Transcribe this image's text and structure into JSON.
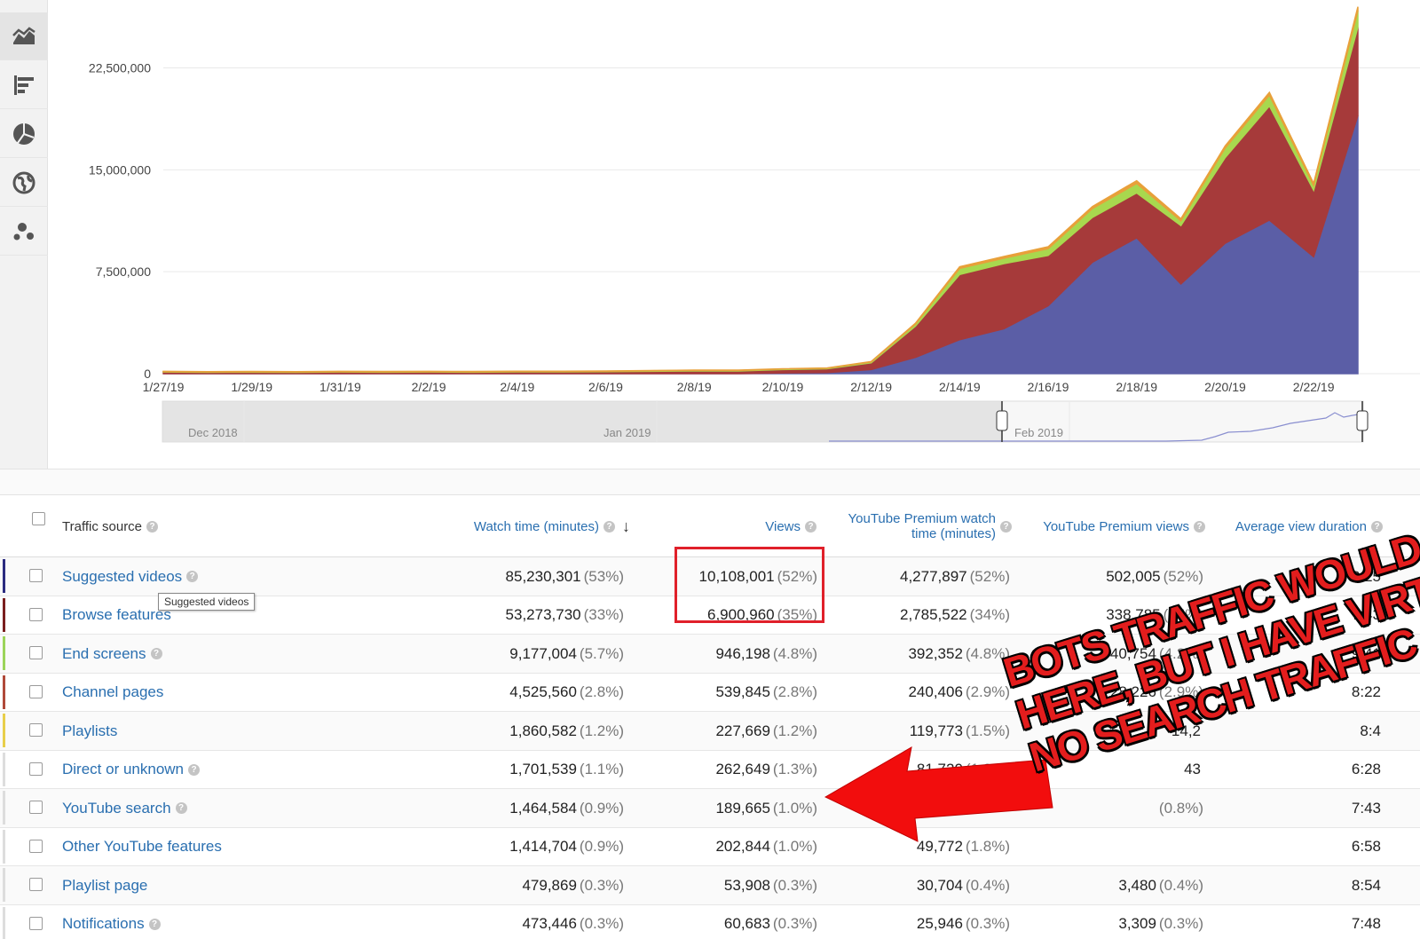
{
  "rail": {
    "buttons": [
      {
        "icon": "area-chart-icon",
        "active": true
      },
      {
        "icon": "bar-chart-icon",
        "active": false
      },
      {
        "icon": "pie-chart-icon",
        "active": false
      },
      {
        "icon": "globe-icon",
        "active": false
      },
      {
        "icon": "bubble-chart-icon",
        "active": false
      }
    ]
  },
  "chart_data": {
    "type": "area",
    "stacked": true,
    "x": [
      "1/27/19",
      "1/28/19",
      "1/29/19",
      "1/30/19",
      "1/31/19",
      "2/1/19",
      "2/2/19",
      "2/3/19",
      "2/4/19",
      "2/5/19",
      "2/6/19",
      "2/7/19",
      "2/8/19",
      "2/9/19",
      "2/10/19",
      "2/11/19",
      "2/12/19",
      "2/13/19",
      "2/14/19",
      "2/15/19",
      "2/16/19",
      "2/17/19",
      "2/18/19",
      "2/19/19",
      "2/20/19",
      "2/21/19",
      "2/22/19",
      "2/23/19"
    ],
    "x_tick_labels": [
      "1/27/19",
      "1/29/19",
      "1/31/19",
      "2/2/19",
      "2/4/19",
      "2/6/19",
      "2/8/19",
      "2/10/19",
      "2/12/19",
      "2/14/19",
      "2/16/19",
      "2/18/19",
      "2/20/19",
      "2/22/19"
    ],
    "y_tick_labels": [
      "0",
      "7,500,000",
      "15,000,000",
      "22,500,000"
    ],
    "ylim": [
      0,
      27500000
    ],
    "grid": true,
    "series": [
      {
        "color": "#5b5ea6",
        "values": [
          0,
          0,
          0,
          0,
          0,
          0,
          0,
          0,
          0,
          0,
          0,
          0,
          0,
          0,
          50000,
          80000,
          300000,
          1200000,
          2500000,
          3300000,
          5000000,
          8200000,
          10000000,
          6600000,
          9600000,
          11300000,
          8600000,
          19000000
        ]
      },
      {
        "color": "#a63a3a",
        "values": [
          120000,
          100000,
          110000,
          100000,
          120000,
          110000,
          120000,
          110000,
          130000,
          130000,
          150000,
          170000,
          200000,
          200000,
          250000,
          280000,
          500000,
          2300000,
          4800000,
          4800000,
          3700000,
          3300000,
          3300000,
          4300000,
          6300000,
          8400000,
          4900000,
          6500000
        ]
      },
      {
        "color": "#a8d84e",
        "values": [
          30000,
          30000,
          30000,
          30000,
          30000,
          30000,
          30000,
          30000,
          30000,
          30000,
          30000,
          40000,
          40000,
          40000,
          40000,
          40000,
          60000,
          150000,
          450000,
          400000,
          500000,
          650000,
          700000,
          350000,
          700000,
          800000,
          350000,
          1200000
        ]
      },
      {
        "color": "#e8a03a",
        "values": [
          20000,
          20000,
          20000,
          20000,
          20000,
          20000,
          20000,
          20000,
          20000,
          20000,
          20000,
          20000,
          20000,
          20000,
          20000,
          20000,
          30000,
          60000,
          120000,
          120000,
          140000,
          150000,
          200000,
          150000,
          160000,
          200000,
          150000,
          300000
        ]
      }
    ]
  },
  "navigator": {
    "labels": [
      "Dec 2018",
      "Jan 2019",
      "Feb 2019"
    ]
  },
  "table": {
    "headers": {
      "source": "Traffic source",
      "watch_time": "Watch time (minutes)",
      "views": "Views",
      "premium_watch": "YouTube Premium watch time (minutes)",
      "premium_views": "YouTube Premium views",
      "avg_duration": "Average view duration"
    },
    "rows": [
      {
        "color": "#2b2b80",
        "name": "Suggested videos",
        "help": true,
        "watch": "85,230,301",
        "watch_pct": "(53%)",
        "views": "10,108,001",
        "views_pct": "(52%)",
        "pwatch": "4,277,897",
        "pwatch_pct": "(52%)",
        "pviews": "502,005",
        "pviews_pct": "(52%)",
        "avg": "8:25"
      },
      {
        "color": "#7a1f1f",
        "name": "Browse features",
        "help": false,
        "watch": "53,273,730",
        "watch_pct": "(33%)",
        "views": "6,900,960",
        "views_pct": "(35%)",
        "pwatch": "2,785,522",
        "pwatch_pct": "(34%)",
        "pviews": "338,785",
        "pviews_pct": "(35%)",
        "avg": "7:43"
      },
      {
        "color": "#9cd45a",
        "name": "End screens",
        "help": true,
        "watch": "9,177,004",
        "watch_pct": "(5.7%)",
        "views": "946,198",
        "views_pct": "(4.8%)",
        "pwatch": "392,352",
        "pwatch_pct": "(4.8%)",
        "pviews": "40,754",
        "pviews_pct": "(4.2%)",
        "avg": "9:41"
      },
      {
        "color": "#b04a3a",
        "name": "Channel pages",
        "help": false,
        "watch": "4,525,560",
        "watch_pct": "(2.8%)",
        "views": "539,845",
        "views_pct": "(2.8%)",
        "pwatch": "240,406",
        "pwatch_pct": "(2.9%)",
        "pviews": "28,226",
        "pviews_pct": "(2.9%)",
        "avg": "8:22"
      },
      {
        "color": "#e8cf4a",
        "name": "Playlists",
        "help": false,
        "watch": "1,860,582",
        "watch_pct": "(1.2%)",
        "views": "227,669",
        "views_pct": "(1.2%)",
        "pwatch": "119,773",
        "pwatch_pct": "(1.5%)",
        "pviews": "14,2",
        "pviews_pct": "",
        "avg": "8:4"
      },
      {
        "color": "#dddddd",
        "name": "Direct or unknown",
        "help": true,
        "watch": "1,701,539",
        "watch_pct": "(1.1%)",
        "views": "262,649",
        "views_pct": "(1.3%)",
        "pwatch": "81,720",
        "pwatch_pct": "(1.0%)",
        "pviews": "43",
        "pviews_pct": "",
        "avg": "6:28"
      },
      {
        "color": "#dddddd",
        "name": "YouTube search",
        "help": true,
        "watch": "1,464,584",
        "watch_pct": "(0.9%)",
        "views": "189,665",
        "views_pct": "(1.0%)",
        "pwatch": "",
        "pwatch_pct": "",
        "pviews": "",
        "pviews_pct": "(0.8%)",
        "avg": "7:43"
      },
      {
        "color": "#dddddd",
        "name": "Other YouTube features",
        "help": false,
        "watch": "1,414,704",
        "watch_pct": "(0.9%)",
        "views": "202,844",
        "views_pct": "(1.0%)",
        "pwatch": "49,772",
        "pwatch_pct": "(1.8%)",
        "pviews": "",
        "pviews_pct": "",
        "avg": "6:58"
      },
      {
        "color": "#dddddd",
        "name": "Playlist page",
        "help": false,
        "watch": "479,869",
        "watch_pct": "(0.3%)",
        "views": "53,908",
        "views_pct": "(0.3%)",
        "pwatch": "30,704",
        "pwatch_pct": "(0.4%)",
        "pviews": "3,480",
        "pviews_pct": "(0.4%)",
        "avg": "8:54"
      },
      {
        "color": "#dddddd",
        "name": "Notifications",
        "help": true,
        "watch": "473,446",
        "watch_pct": "(0.3%)",
        "views": "60,683",
        "views_pct": "(0.3%)",
        "pwatch": "25,946",
        "pwatch_pct": "(0.3%)",
        "pviews": "3,309",
        "pviews_pct": "(0.3%)",
        "avg": "7:48"
      }
    ]
  },
  "tooltip": "Suggested videos",
  "annotation": {
    "lines": [
      "BOTS TRAFFIC WOULD",
      "HERE, BUT I HAVE VIRT",
      "NO SEARCH TRAFFIC"
    ],
    "color": "#e31d1d"
  }
}
